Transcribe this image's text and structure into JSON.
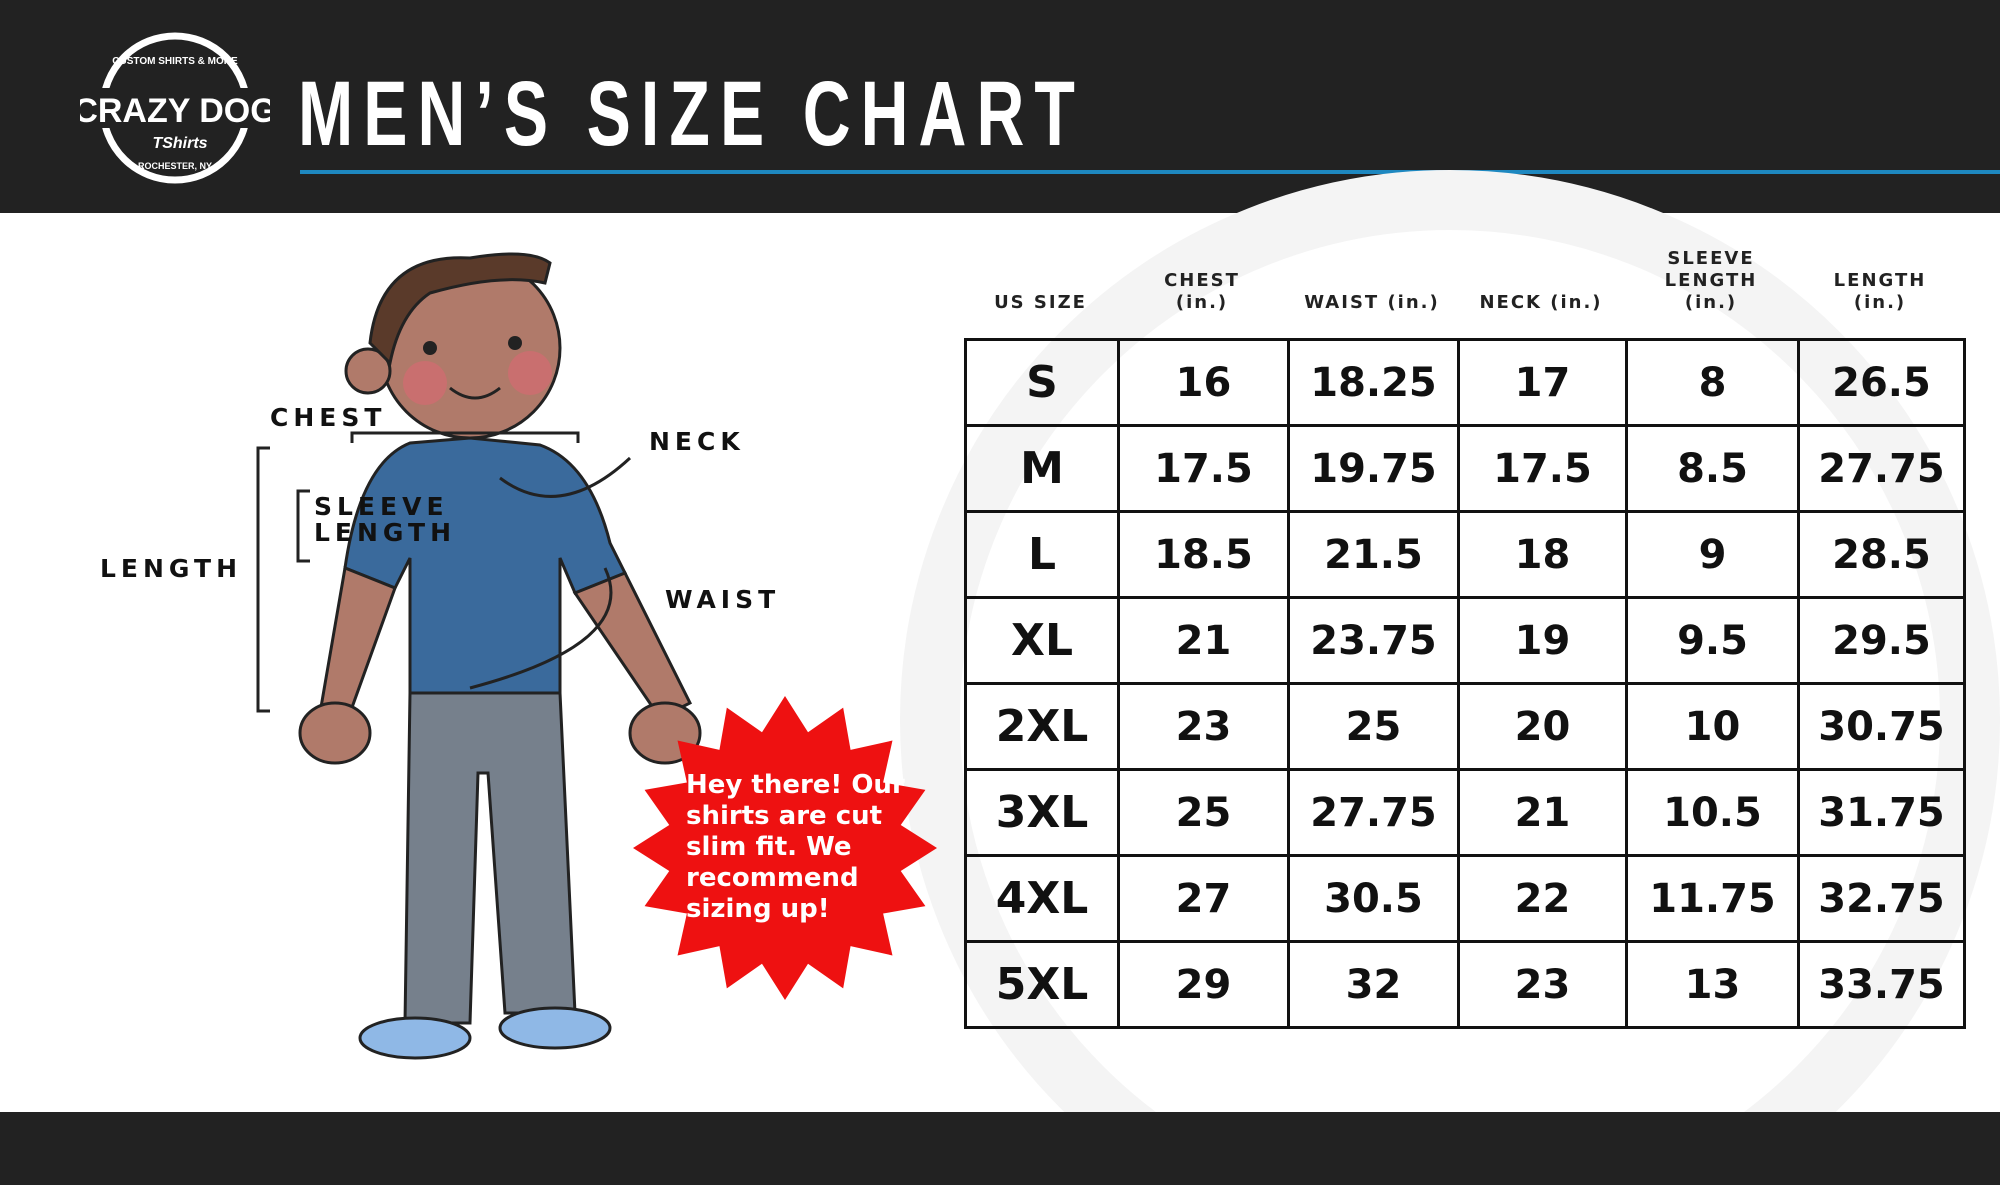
{
  "header": {
    "logo_text": "CRAZY DOG TShirts — CUSTOM SHIRTS & MORE — ROCHESTER, NY",
    "title": "MEN’S SIZE CHART"
  },
  "colors": {
    "header_bg": "#222222",
    "accent_rule": "#1e88c0",
    "starburst": "#ee1111",
    "shirt": "#3a6a9c",
    "pants": "#76808c"
  },
  "figure": {
    "labels": {
      "chest": "CHEST",
      "neck": "NECK",
      "sleeve_length": "SLEEVE LENGTH",
      "length": "LENGTH",
      "waist": "WAIST"
    },
    "callout": "Hey there! Our shirts are cut slim fit. We recommend sizing up!"
  },
  "table": {
    "headers": [
      "US SIZE",
      "CHEST (in.)",
      "WAIST (in.)",
      "NECK (in.)",
      "SLEEVE LENGTH (in.)",
      "LENGTH (in.)"
    ],
    "rows": [
      [
        "S",
        "16",
        "18.25",
        "17",
        "8",
        "26.5"
      ],
      [
        "M",
        "17.5",
        "19.75",
        "17.5",
        "8.5",
        "27.75"
      ],
      [
        "L",
        "18.5",
        "21.5",
        "18",
        "9",
        "28.5"
      ],
      [
        "XL",
        "21",
        "23.75",
        "19",
        "9.5",
        "29.5"
      ],
      [
        "2XL",
        "23",
        "25",
        "20",
        "10",
        "30.75"
      ],
      [
        "3XL",
        "25",
        "27.75",
        "21",
        "10.5",
        "31.75"
      ],
      [
        "4XL",
        "27",
        "30.5",
        "22",
        "11.75",
        "32.75"
      ],
      [
        "5XL",
        "29",
        "32",
        "23",
        "13",
        "33.75"
      ]
    ]
  }
}
